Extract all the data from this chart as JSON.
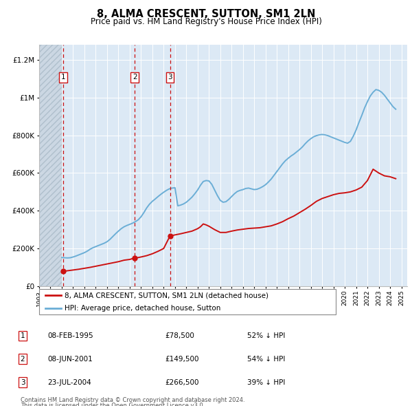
{
  "title": "8, ALMA CRESCENT, SUTTON, SM1 2LN",
  "subtitle": "Price paid vs. HM Land Registry's House Price Index (HPI)",
  "legend_line1": "8, ALMA CRESCENT, SUTTON, SM1 2LN (detached house)",
  "legend_line2": "HPI: Average price, detached house, Sutton",
  "footer1": "Contains HM Land Registry data © Crown copyright and database right 2024.",
  "footer2": "This data is licensed under the Open Government Licence v3.0.",
  "transactions": [
    {
      "num": 1,
      "date": "08-FEB-1995",
      "price": 78500,
      "pct": "52% ↓ HPI",
      "x_year": 1995.11
    },
    {
      "num": 2,
      "date": "08-JUN-2001",
      "price": 149500,
      "pct": "54% ↓ HPI",
      "x_year": 2001.44
    },
    {
      "num": 3,
      "date": "23-JUL-2004",
      "price": 266500,
      "pct": "39% ↓ HPI",
      "x_year": 2004.56
    }
  ],
  "xlim": [
    1993.0,
    2025.5
  ],
  "ylim": [
    0,
    1280000
  ],
  "yticks": [
    0,
    200000,
    400000,
    600000,
    800000,
    1000000,
    1200000
  ],
  "ytick_labels": [
    "£0",
    "£200K",
    "£400K",
    "£600K",
    "£800K",
    "£1M",
    "£1.2M"
  ],
  "xticks": [
    1993,
    1994,
    1995,
    1996,
    1997,
    1998,
    1999,
    2000,
    2001,
    2002,
    2003,
    2004,
    2005,
    2006,
    2007,
    2008,
    2009,
    2010,
    2011,
    2012,
    2013,
    2014,
    2015,
    2016,
    2017,
    2018,
    2019,
    2020,
    2021,
    2022,
    2023,
    2024,
    2025
  ],
  "background_color": "#dce9f5",
  "line_red": "#cc1111",
  "line_blue": "#6baed6",
  "hpi_data_x": [
    1995.0,
    1995.25,
    1995.5,
    1995.75,
    1996.0,
    1996.25,
    1996.5,
    1996.75,
    1997.0,
    1997.25,
    1997.5,
    1997.75,
    1998.0,
    1998.25,
    1998.5,
    1998.75,
    1999.0,
    1999.25,
    1999.5,
    1999.75,
    2000.0,
    2000.25,
    2000.5,
    2000.75,
    2001.0,
    2001.25,
    2001.5,
    2001.75,
    2002.0,
    2002.25,
    2002.5,
    2002.75,
    2003.0,
    2003.25,
    2003.5,
    2003.75,
    2004.0,
    2004.25,
    2004.5,
    2004.75,
    2005.0,
    2005.25,
    2005.5,
    2005.75,
    2006.0,
    2006.25,
    2006.5,
    2006.75,
    2007.0,
    2007.25,
    2007.5,
    2007.75,
    2008.0,
    2008.25,
    2008.5,
    2008.75,
    2009.0,
    2009.25,
    2009.5,
    2009.75,
    2010.0,
    2010.25,
    2010.5,
    2010.75,
    2011.0,
    2011.25,
    2011.5,
    2011.75,
    2012.0,
    2012.25,
    2012.5,
    2012.75,
    2013.0,
    2013.25,
    2013.5,
    2013.75,
    2014.0,
    2014.25,
    2014.5,
    2014.75,
    2015.0,
    2015.25,
    2015.5,
    2015.75,
    2016.0,
    2016.25,
    2016.5,
    2016.75,
    2017.0,
    2017.25,
    2017.5,
    2017.75,
    2018.0,
    2018.25,
    2018.5,
    2018.75,
    2019.0,
    2019.25,
    2019.5,
    2019.75,
    2020.0,
    2020.25,
    2020.5,
    2020.75,
    2021.0,
    2021.25,
    2021.5,
    2021.75,
    2022.0,
    2022.25,
    2022.5,
    2022.75,
    2023.0,
    2023.25,
    2023.5,
    2023.75,
    2024.0,
    2024.25,
    2024.5
  ],
  "hpi_data_y": [
    152000,
    151000,
    150000,
    151000,
    155000,
    160000,
    166000,
    172000,
    178000,
    186000,
    196000,
    204000,
    210000,
    216000,
    222000,
    228000,
    236000,
    248000,
    263000,
    278000,
    292000,
    305000,
    315000,
    322000,
    328000,
    334000,
    342000,
    352000,
    368000,
    390000,
    415000,
    435000,
    450000,
    462000,
    475000,
    487000,
    498000,
    508000,
    516000,
    520000,
    522000,
    426000,
    430000,
    436000,
    445000,
    458000,
    472000,
    490000,
    510000,
    535000,
    555000,
    560000,
    558000,
    540000,
    510000,
    480000,
    455000,
    445000,
    448000,
    460000,
    475000,
    490000,
    502000,
    508000,
    512000,
    518000,
    520000,
    516000,
    512000,
    514000,
    520000,
    528000,
    538000,
    552000,
    568000,
    588000,
    608000,
    628000,
    648000,
    665000,
    678000,
    690000,
    700000,
    712000,
    724000,
    738000,
    755000,
    770000,
    782000,
    792000,
    798000,
    802000,
    804000,
    802000,
    798000,
    792000,
    786000,
    780000,
    774000,
    768000,
    762000,
    758000,
    768000,
    795000,
    828000,
    868000,
    905000,
    945000,
    978000,
    1008000,
    1028000,
    1042000,
    1038000,
    1028000,
    1012000,
    992000,
    972000,
    952000,
    938000
  ],
  "red_line_x": [
    1995.0,
    1995.11,
    1995.5,
    1996.0,
    1996.5,
    1997.0,
    1997.5,
    1998.0,
    1998.5,
    1999.0,
    1999.5,
    2000.0,
    2000.5,
    2001.0,
    2001.44,
    2001.75,
    2002.0,
    2002.5,
    2003.0,
    2003.5,
    2004.0,
    2004.56,
    2005.0,
    2005.5,
    2006.0,
    2006.5,
    2007.0,
    2007.25,
    2007.5,
    2007.75,
    2008.0,
    2008.5,
    2009.0,
    2009.5,
    2010.0,
    2010.5,
    2011.0,
    2011.5,
    2012.0,
    2012.5,
    2013.0,
    2013.5,
    2014.0,
    2014.5,
    2015.0,
    2015.5,
    2016.0,
    2016.5,
    2017.0,
    2017.5,
    2018.0,
    2018.5,
    2019.0,
    2019.5,
    2020.0,
    2020.5,
    2021.0,
    2021.5,
    2022.0,
    2022.25,
    2022.5,
    2022.75,
    2023.0,
    2023.5,
    2024.0,
    2024.5
  ],
  "red_line_y": [
    72000,
    78500,
    82000,
    86000,
    90000,
    95000,
    100000,
    106000,
    112000,
    118000,
    124000,
    130000,
    138000,
    142000,
    149500,
    152000,
    155000,
    162000,
    172000,
    185000,
    200000,
    266500,
    272000,
    278000,
    285000,
    292000,
    305000,
    315000,
    330000,
    325000,
    318000,
    300000,
    285000,
    285000,
    292000,
    298000,
    302000,
    306000,
    308000,
    310000,
    315000,
    320000,
    330000,
    342000,
    358000,
    372000,
    390000,
    408000,
    428000,
    450000,
    465000,
    475000,
    485000,
    492000,
    495000,
    500000,
    510000,
    525000,
    560000,
    590000,
    620000,
    610000,
    600000,
    585000,
    580000,
    570000
  ]
}
